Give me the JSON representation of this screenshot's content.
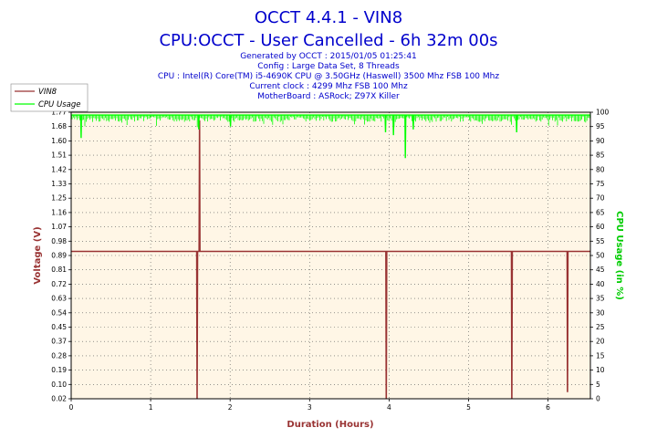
{
  "chart_data": {
    "type": "line",
    "title": "OCCT 4.4.1 - VIN8",
    "subtitle": "CPU:OCCT - User Cancelled - 6h 32m 00s",
    "info_lines": [
      "Generated by OCCT : 2015/01/05 01:25:41",
      "Config : Large Data Set, 8 Threads",
      "CPU : Intel(R) Core(TM) i5-4690K CPU @ 3.50GHz (Haswell) 3500 Mhz FSB 100 Mhz",
      "Current clock : 4299 Mhz FSB 100 Mhz",
      "MotherBoard : ASRock; Z97X Killer"
    ],
    "xlabel": "Duration (Hours)",
    "ylabel_left": "Voltage (V)",
    "ylabel_right": "CPU Usage (in %)",
    "xlim": [
      0,
      6.533
    ],
    "ylim_left": [
      0.02,
      1.77
    ],
    "ylim_right": [
      0,
      100
    ],
    "x_ticks": [
      "0",
      "1",
      "2",
      "3",
      "4",
      "5",
      "6"
    ],
    "y_ticks_left": [
      "0.02",
      "0.10",
      "0.19",
      "0.28",
      "0.37",
      "0.45",
      "0.54",
      "0.63",
      "0.72",
      "0.81",
      "0.89",
      "0.98",
      "1.07",
      "1.16",
      "1.25",
      "1.33",
      "1.42",
      "1.51",
      "1.60",
      "1.68",
      "1.77"
    ],
    "y_ticks_right": [
      "0",
      "5",
      "10",
      "15",
      "20",
      "25",
      "30",
      "35",
      "40",
      "45",
      "50",
      "55",
      "60",
      "65",
      "70",
      "75",
      "80",
      "85",
      "90",
      "95",
      "100"
    ],
    "grid": true,
    "legend_position": "top-left",
    "series": [
      {
        "name": "VIN8",
        "axis": "left",
        "color": "#993333",
        "baseline": 0.92,
        "x": [
          0,
          1.58,
          1.585,
          1.59,
          1.61,
          1.615,
          1.62,
          3.96,
          3.965,
          3.97,
          5.54,
          5.545,
          5.55,
          6.24,
          6.245,
          6.25,
          6.533
        ],
        "y": [
          0.92,
          0.92,
          0.02,
          0.92,
          0.92,
          1.72,
          0.92,
          0.92,
          0.02,
          0.92,
          0.92,
          0.02,
          0.92,
          0.92,
          0.06,
          0.92,
          0.92
        ]
      },
      {
        "name": "CPU Usage",
        "axis": "right",
        "color": "#00ff00",
        "baseline": 99,
        "x": [
          0,
          0.12,
          0.125,
          0.13,
          1.6,
          1.605,
          1.61,
          2.0,
          2.005,
          2.01,
          3.95,
          3.955,
          3.96,
          4.05,
          4.055,
          4.06,
          4.2,
          4.205,
          4.21,
          4.3,
          4.305,
          4.31,
          5.6,
          5.605,
          5.61,
          6.533
        ],
        "y": [
          99,
          99,
          91,
          99,
          99,
          94,
          99,
          99,
          95,
          99,
          99,
          93,
          99,
          99,
          92,
          99,
          99,
          84,
          99,
          99,
          94,
          99,
          99,
          93,
          99,
          99
        ]
      }
    ]
  }
}
